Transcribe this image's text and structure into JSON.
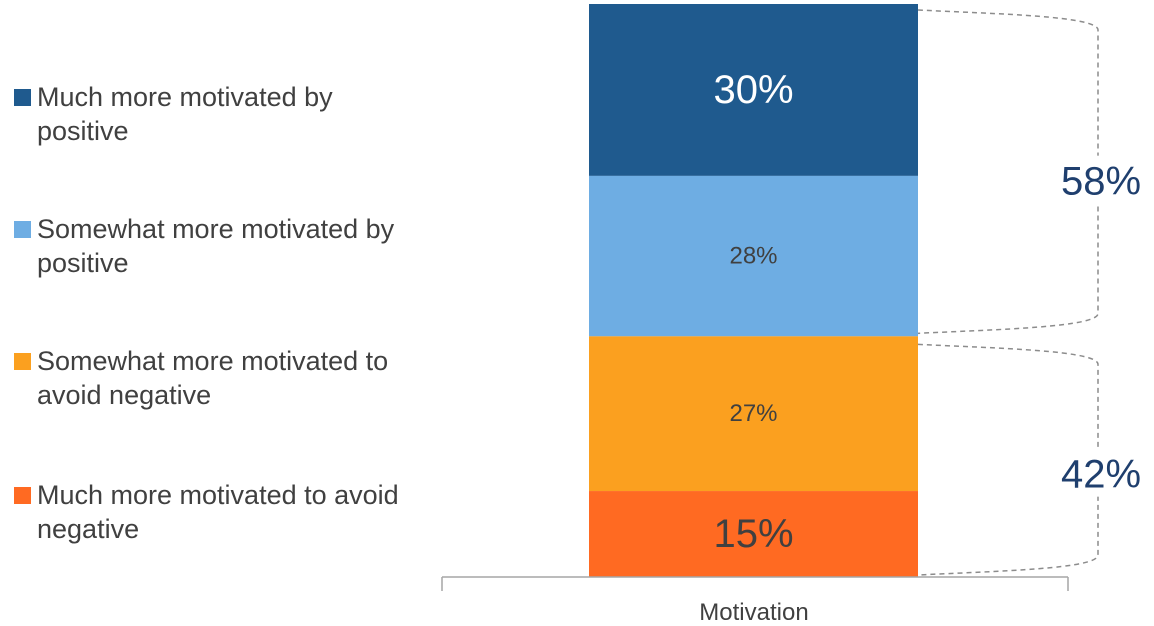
{
  "chart_data": {
    "type": "bar",
    "stacked": true,
    "categories": [
      "Motivation"
    ],
    "series": [
      {
        "name": "Much more motivated by positive",
        "values": [
          30
        ],
        "color": "#1f5a8e",
        "label": "30%",
        "label_color": "#ffffff"
      },
      {
        "name": "Somewhat more motivated by positive",
        "values": [
          28
        ],
        "color": "#6eade3",
        "label": "28%",
        "label_color": "#404040"
      },
      {
        "name": "Somewhat more motivated to avoid negative",
        "values": [
          27
        ],
        "color": "#fba01f",
        "label": "27%",
        "label_color": "#404040"
      },
      {
        "name": "Much more motivated to avoid negative",
        "values": [
          15
        ],
        "color": "#ff6a22",
        "label": "15%",
        "label_color": "#404040"
      }
    ],
    "ylim": [
      0,
      100
    ],
    "legend_position": "left",
    "brackets": [
      {
        "label": "58%",
        "covers": [
          "Much more motivated by positive",
          "Somewhat more motivated by positive"
        ]
      },
      {
        "label": "42%",
        "covers": [
          "Somewhat more motivated to avoid negative",
          "Much more motivated to avoid negative"
        ]
      }
    ],
    "annotation_color": "#1f3f6e",
    "grid": false
  },
  "legend": {
    "items": [
      {
        "label": "Much more motivated by positive",
        "color": "#1f5a8e"
      },
      {
        "label": "Somewhat more motivated by positive",
        "color": "#6eade3"
      },
      {
        "label": "Somewhat more motivated to avoid negative",
        "color": "#fba01f"
      },
      {
        "label": "Much more motivated to avoid negative",
        "color": "#ff6a22"
      }
    ]
  }
}
